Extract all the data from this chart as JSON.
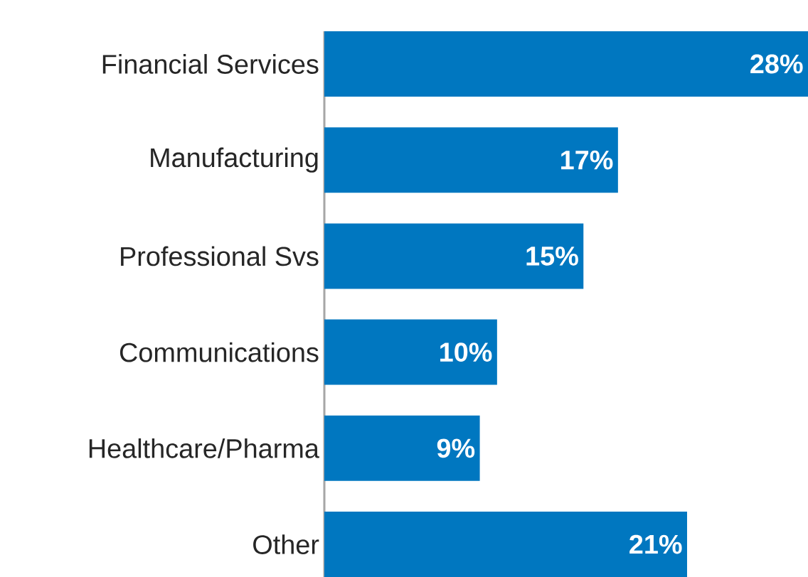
{
  "chart_data": {
    "type": "bar",
    "orientation": "horizontal",
    "color": "#0077c0",
    "categories": [
      "Financial Services",
      "Manufacturing",
      "Professional Svs",
      "Communications",
      "Healthcare/Pharma",
      "Other"
    ],
    "values": [
      28,
      17,
      15,
      10,
      9,
      21
    ],
    "value_labels": [
      "28%",
      "17%",
      "15%",
      "10%",
      "9%",
      "21%"
    ]
  }
}
